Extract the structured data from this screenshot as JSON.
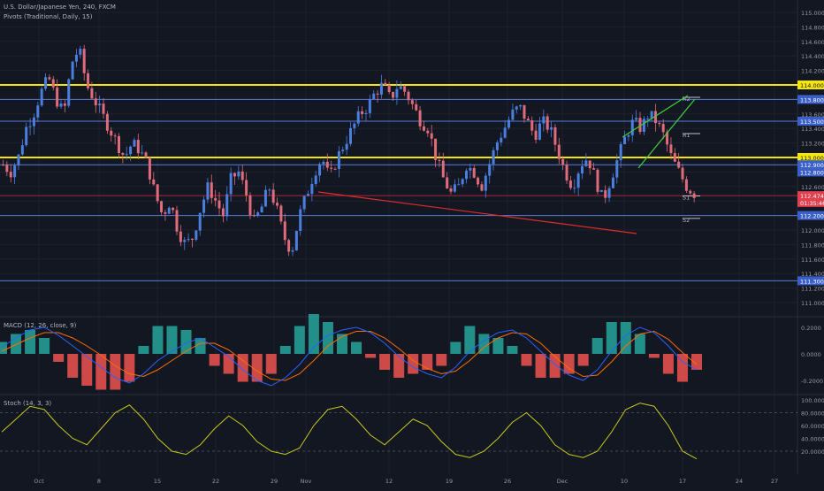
{
  "header": {
    "symbol_line": "U.S. Dollar/Japanese Yen, 240, FXCM",
    "pivots_label": "Pivots (Traditional, Daily, 15)",
    "macd_label": "MACD (12, 26, close, 9)",
    "stoch_label": "Stoch (14, 3, 3)"
  },
  "colors": {
    "background": "#131722",
    "grid": "#1e2230",
    "up_candle": "#4a7fe0",
    "down_candle": "#e06b7a",
    "yellow_level": "#f5e60a",
    "pivot_blue": "#5a7ad6",
    "red_trend": "#e02b2b",
    "green_channel": "#3ec83a",
    "macd_line": "#2962ff",
    "signal_line": "#ff6d00",
    "hist_pos": "#26a69a",
    "hist_neg": "#ef5350",
    "stoch_line": "#c8c81e"
  },
  "chart_data": [
    {
      "type": "candlestick",
      "title": "U.S. Dollar/Japanese Yen, 240, FXCM",
      "ylim": [
        110.8,
        115.2
      ],
      "y_ticks": [
        "115.000",
        "114.800",
        "114.600",
        "114.400",
        "114.200",
        "114.000",
        "113.800",
        "113.600",
        "113.400",
        "113.200",
        "113.000",
        "112.800",
        "112.600",
        "112.400",
        "112.200",
        "112.000",
        "111.800",
        "111.600",
        "111.400",
        "111.200",
        "111.000"
      ],
      "x_ticks": [
        "Oct",
        "8",
        "15",
        "22",
        "29",
        "Nov",
        "12",
        "19",
        "26",
        "Dec",
        "10",
        "17",
        "24",
        "27"
      ],
      "price_path": [
        112.9,
        112.8,
        113.0,
        113.4,
        113.6,
        113.9,
        114.1,
        113.8,
        113.6,
        114.3,
        114.5,
        114.0,
        113.8,
        113.6,
        113.4,
        113.2,
        113.0,
        113.2,
        113.1,
        112.9,
        112.5,
        112.2,
        112.4,
        112.0,
        111.8,
        111.9,
        112.3,
        112.6,
        112.4,
        112.2,
        112.7,
        112.8,
        112.5,
        112.1,
        112.3,
        112.6,
        112.3,
        111.9,
        111.7,
        112.2,
        112.5,
        112.8,
        113.0,
        112.7,
        113.0,
        113.2,
        113.4,
        113.6,
        113.7,
        113.9,
        114.0,
        113.8,
        114.0,
        113.9,
        113.7,
        113.5,
        113.4,
        113.0,
        112.7,
        112.5,
        112.6,
        112.9,
        112.8,
        112.6,
        112.9,
        113.2,
        113.4,
        113.6,
        113.7,
        113.5,
        113.3,
        113.5,
        113.4,
        113.1,
        112.8,
        112.6,
        112.9,
        113.0,
        112.7,
        112.4,
        112.7,
        113.0,
        113.3,
        113.5,
        113.4,
        113.6,
        113.5,
        113.3,
        113.0,
        112.8,
        112.6,
        112.5
      ],
      "levels": [
        {
          "label": "114.000",
          "value": 114.0,
          "style": "yellow"
        },
        {
          "label": "113.800",
          "value": 113.8,
          "style": "blue"
        },
        {
          "label": "113.500",
          "value": 113.5,
          "style": "blue"
        },
        {
          "label": "113.000",
          "value": 113.0,
          "style": "yellow"
        },
        {
          "label": "112.900",
          "value": 112.9,
          "style": "blue"
        },
        {
          "label": "112.200",
          "value": 112.2,
          "style": "blue"
        },
        {
          "label": "111.300",
          "value": 111.3,
          "style": "blue"
        }
      ],
      "axis_price_tags": [
        {
          "label": "113.800",
          "value": 113.8,
          "kind": "blue"
        },
        {
          "label": "113.500",
          "value": 113.5,
          "kind": "blue"
        },
        {
          "label": "112.900",
          "value": 112.9,
          "kind": "blue"
        },
        {
          "label": "112.800",
          "value": 112.8,
          "kind": "blue"
        },
        {
          "label": "112.474",
          "value": 112.474,
          "kind": "red"
        },
        {
          "label": "01:35:46",
          "value": 112.38,
          "kind": "red"
        },
        {
          "label": "112.200",
          "value": 112.2,
          "kind": "blue"
        },
        {
          "label": "111.300",
          "value": 111.3,
          "kind": "blue"
        }
      ],
      "current_price": 112.474,
      "pivot_labels": [
        {
          "label": "R2",
          "value": 113.83
        },
        {
          "label": "R1",
          "value": 113.33
        },
        {
          "label": "S1",
          "value": 112.47
        },
        {
          "label": "S2",
          "value": 112.16
        }
      ]
    },
    {
      "type": "line",
      "title": "MACD (12, 26, close, 9)",
      "ylim": [
        -0.3,
        0.3
      ],
      "y_ticks": [
        "0.2000",
        "0.0000",
        "-0.2000"
      ],
      "series": [
        {
          "name": "MACD",
          "values": [
            0.05,
            0.12,
            0.18,
            0.2,
            0.14,
            0.06,
            -0.02,
            -0.1,
            -0.18,
            -0.22,
            -0.15,
            -0.05,
            0.02,
            0.08,
            0.12,
            0.05,
            -0.02,
            -0.12,
            -0.2,
            -0.24,
            -0.18,
            -0.08,
            0.05,
            0.14,
            0.18,
            0.2,
            0.16,
            0.08,
            -0.02,
            -0.1,
            -0.15,
            -0.18,
            -0.1,
            0.02,
            0.1,
            0.16,
            0.18,
            0.12,
            0.02,
            -0.08,
            -0.16,
            -0.2,
            -0.12,
            0.02,
            0.14,
            0.2,
            0.16,
            0.06,
            -0.06,
            -0.12
          ]
        },
        {
          "name": "Signal",
          "values": [
            0.02,
            0.07,
            0.12,
            0.16,
            0.16,
            0.12,
            0.06,
            -0.01,
            -0.09,
            -0.15,
            -0.17,
            -0.12,
            -0.05,
            0.02,
            0.08,
            0.08,
            0.03,
            -0.05,
            -0.13,
            -0.19,
            -0.2,
            -0.15,
            -0.05,
            0.06,
            0.13,
            0.17,
            0.17,
            0.12,
            0.04,
            -0.05,
            -0.11,
            -0.15,
            -0.13,
            -0.05,
            0.05,
            0.12,
            0.16,
            0.15,
            0.08,
            -0.02,
            -0.11,
            -0.17,
            -0.16,
            -0.06,
            0.06,
            0.15,
            0.17,
            0.11,
            0.01,
            -0.08
          ]
        }
      ]
    },
    {
      "type": "line",
      "title": "Stoch (14, 3, 3)",
      "ylim": [
        0,
        100
      ],
      "y_ticks": [
        "100.0000",
        "80.0000",
        "60.0000",
        "40.0000",
        "20.0000"
      ],
      "series": [
        {
          "name": "%K",
          "values": [
            50,
            70,
            90,
            85,
            60,
            40,
            30,
            55,
            80,
            92,
            70,
            40,
            20,
            15,
            30,
            55,
            75,
            60,
            35,
            20,
            15,
            25,
            60,
            85,
            90,
            70,
            45,
            30,
            50,
            70,
            60,
            35,
            15,
            10,
            20,
            40,
            65,
            80,
            60,
            30,
            15,
            10,
            20,
            50,
            85,
            95,
            90,
            60,
            20,
            8
          ]
        }
      ]
    }
  ]
}
